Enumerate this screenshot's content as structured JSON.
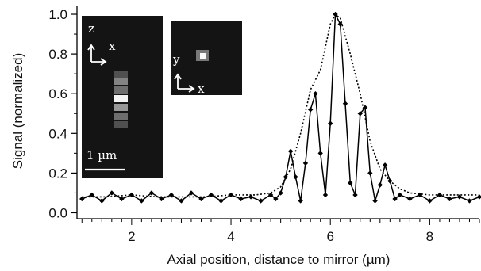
{
  "chart_data": {
    "type": "line",
    "title": "",
    "xlabel": "Axial position, distance to mirror (µm)",
    "ylabel": "Signal (normalized)",
    "xlim": [
      0.9,
      9.0
    ],
    "ylim": [
      -0.03,
      1.04
    ],
    "x_ticks": [
      "2",
      "4",
      "6",
      "8"
    ],
    "y_ticks": [
      "0.0",
      "0.2",
      "0.4",
      "0.6",
      "0.8",
      "1.0"
    ],
    "grid": false,
    "legend": "none",
    "series": [
      {
        "style": "solid line with diamond markers",
        "color": "#000000",
        "points": [
          [
            1.0,
            0.07
          ],
          [
            1.2,
            0.09
          ],
          [
            1.4,
            0.06
          ],
          [
            1.6,
            0.1
          ],
          [
            1.8,
            0.07
          ],
          [
            2.0,
            0.09
          ],
          [
            2.2,
            0.06
          ],
          [
            2.4,
            0.1
          ],
          [
            2.6,
            0.07
          ],
          [
            2.8,
            0.09
          ],
          [
            3.0,
            0.06
          ],
          [
            3.2,
            0.1
          ],
          [
            3.4,
            0.07
          ],
          [
            3.6,
            0.09
          ],
          [
            3.8,
            0.06
          ],
          [
            4.0,
            0.09
          ],
          [
            4.2,
            0.07
          ],
          [
            4.4,
            0.08
          ],
          [
            4.6,
            0.06
          ],
          [
            4.8,
            0.09
          ],
          [
            4.9,
            0.07
          ],
          [
            5.0,
            0.1
          ],
          [
            5.1,
            0.18
          ],
          [
            5.2,
            0.31
          ],
          [
            5.3,
            0.18
          ],
          [
            5.4,
            0.06
          ],
          [
            5.5,
            0.25
          ],
          [
            5.6,
            0.52
          ],
          [
            5.7,
            0.6
          ],
          [
            5.8,
            0.3
          ],
          [
            5.9,
            0.09
          ],
          [
            6.0,
            0.45
          ],
          [
            6.1,
            1.0
          ],
          [
            6.2,
            0.95
          ],
          [
            6.3,
            0.55
          ],
          [
            6.4,
            0.15
          ],
          [
            6.5,
            0.09
          ],
          [
            6.6,
            0.5
          ],
          [
            6.7,
            0.53
          ],
          [
            6.8,
            0.2
          ],
          [
            6.9,
            0.06
          ],
          [
            7.0,
            0.14
          ],
          [
            7.1,
            0.24
          ],
          [
            7.2,
            0.16
          ],
          [
            7.3,
            0.07
          ],
          [
            7.4,
            0.09
          ],
          [
            7.6,
            0.07
          ],
          [
            7.8,
            0.09
          ],
          [
            8.0,
            0.06
          ],
          [
            8.2,
            0.09
          ],
          [
            8.4,
            0.07
          ],
          [
            8.6,
            0.08
          ],
          [
            8.8,
            0.06
          ],
          [
            9.0,
            0.08
          ]
        ]
      },
      {
        "style": "dotted line",
        "color": "#000000",
        "points": [
          [
            1.0,
            0.08
          ],
          [
            1.5,
            0.08
          ],
          [
            2.0,
            0.09
          ],
          [
            2.5,
            0.08
          ],
          [
            3.0,
            0.08
          ],
          [
            3.5,
            0.08
          ],
          [
            4.0,
            0.09
          ],
          [
            4.5,
            0.09
          ],
          [
            4.8,
            0.1
          ],
          [
            5.0,
            0.13
          ],
          [
            5.2,
            0.22
          ],
          [
            5.4,
            0.4
          ],
          [
            5.6,
            0.62
          ],
          [
            5.8,
            0.72
          ],
          [
            6.0,
            0.95
          ],
          [
            6.1,
            1.0
          ],
          [
            6.2,
            0.98
          ],
          [
            6.4,
            0.8
          ],
          [
            6.6,
            0.6
          ],
          [
            6.8,
            0.36
          ],
          [
            7.0,
            0.22
          ],
          [
            7.2,
            0.16
          ],
          [
            7.4,
            0.12
          ],
          [
            7.6,
            0.1
          ],
          [
            8.0,
            0.09
          ],
          [
            8.5,
            0.09
          ],
          [
            9.0,
            0.09
          ]
        ]
      }
    ]
  },
  "insets": {
    "xz": {
      "axis_vertical": "z",
      "axis_horizontal": "x",
      "scale_bar_label": "1 µm"
    },
    "xy": {
      "axis_vertical": "y",
      "axis_horizontal": "x"
    }
  }
}
